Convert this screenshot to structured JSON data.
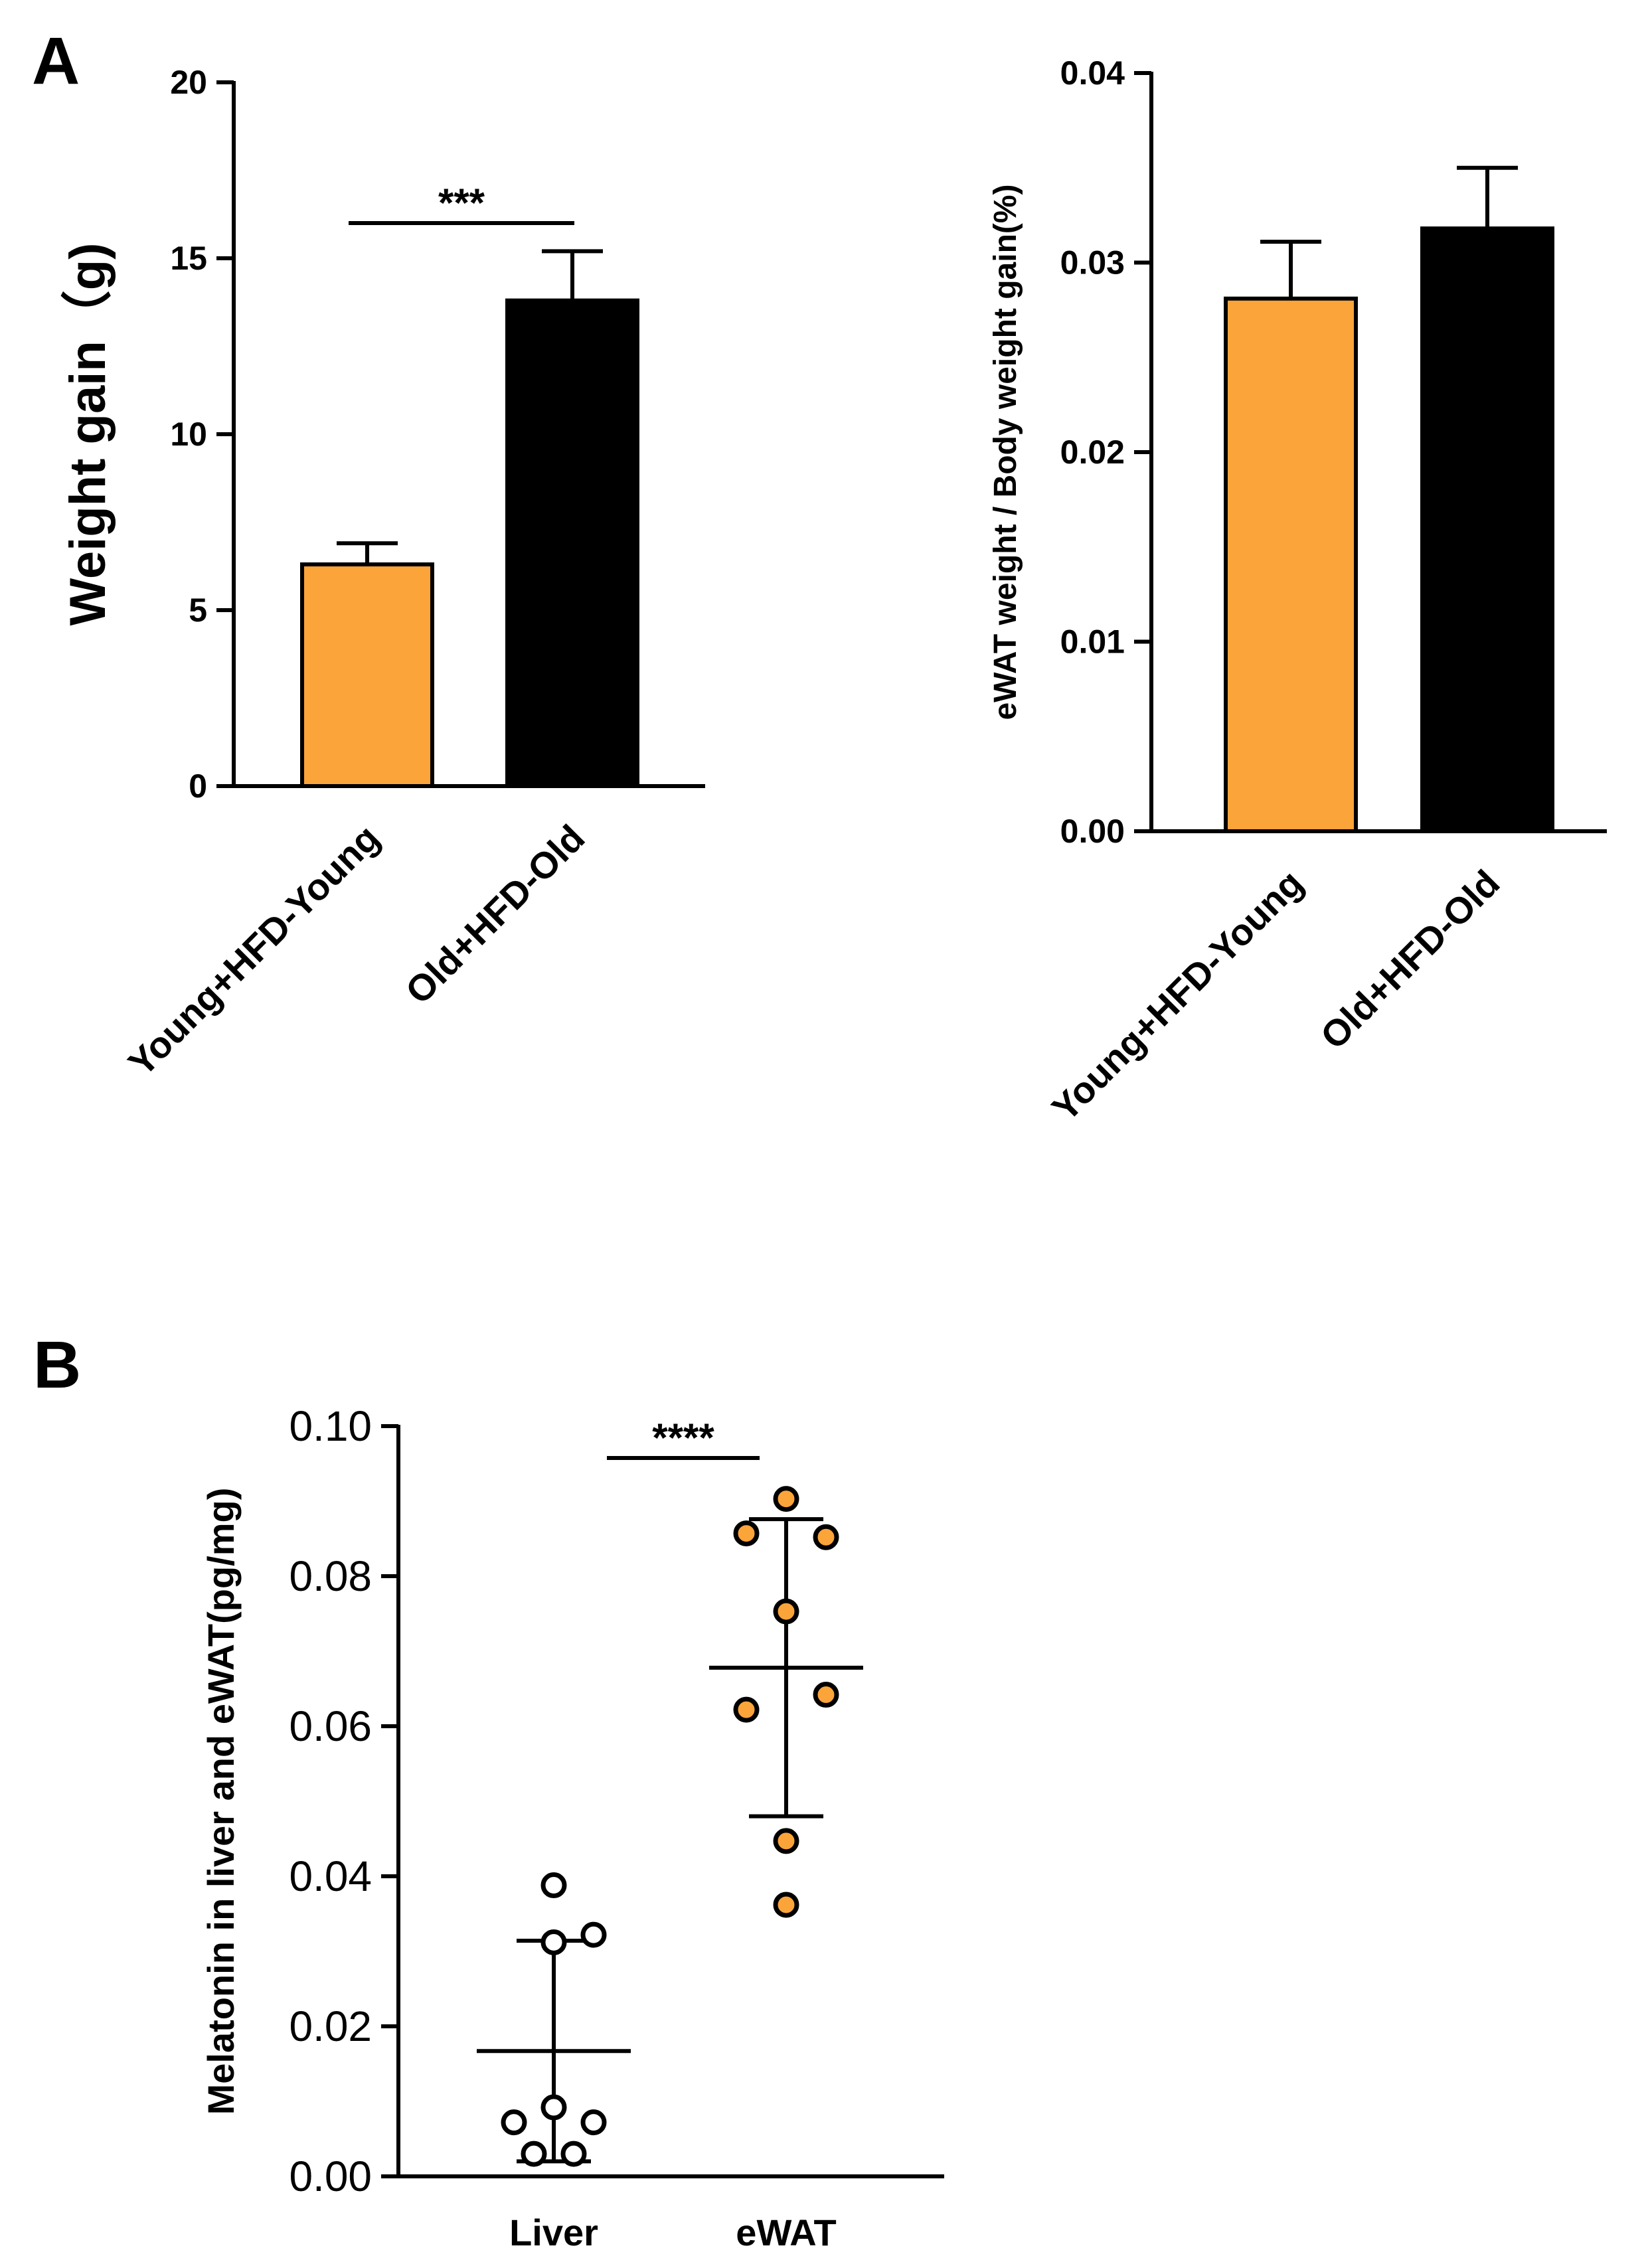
{
  "panels": {
    "a_label": "A",
    "b_label": "B"
  },
  "colors": {
    "orange": "#FBA43A",
    "black": "#000000",
    "white": "#ffffff"
  },
  "chart_data": [
    {
      "id": "A1",
      "type": "bar",
      "title": "",
      "xlabel": "",
      "ylabel": "Weight gain（g)",
      "ylim": [
        0,
        20
      ],
      "yticks": [
        0,
        5,
        10,
        15,
        20
      ],
      "ytick_labels": [
        "0",
        "5",
        "10",
        "15",
        "20"
      ],
      "categories": [
        "Young+HFD-Young",
        "Old+HFD-Old"
      ],
      "values": [
        6.3,
        13.8
      ],
      "errors": [
        0.6,
        1.4
      ],
      "bar_colors": [
        "#FBA43A",
        "#000000"
      ],
      "significance": [
        {
          "between": [
            0,
            1
          ],
          "label": "***"
        }
      ]
    },
    {
      "id": "A2",
      "type": "bar",
      "title": "",
      "xlabel": "",
      "ylabel": "eWAT weight / Body weight gain(%)",
      "ylim": [
        0,
        0.04
      ],
      "yticks": [
        0,
        0.01,
        0.02,
        0.03,
        0.04
      ],
      "ytick_labels": [
        "0.00",
        "0.01",
        "0.02",
        "0.03",
        "0.04"
      ],
      "categories": [
        "Young+HFD-Young",
        "Old+HFD-Old"
      ],
      "values": [
        0.0281,
        0.0318
      ],
      "errors": [
        0.003,
        0.0032
      ],
      "bar_colors": [
        "#FBA43A",
        "#000000"
      ]
    },
    {
      "id": "B",
      "type": "scatter",
      "title": "",
      "xlabel": "",
      "ylabel": "Melatonin in liver and eWAT(pg/mg)",
      "ylim": [
        0,
        0.1
      ],
      "yticks": [
        0,
        0.02,
        0.04,
        0.06,
        0.08,
        0.1
      ],
      "ytick_labels": [
        "0.00",
        "0.02",
        "0.04",
        "0.06",
        "0.08",
        "0.10"
      ],
      "categories": [
        "Liver",
        "eWAT"
      ],
      "series": [
        {
          "name": "Liver",
          "points": [
            {
              "offset": 0,
              "value": 0.0388
            },
            {
              "offset": 0,
              "value": 0.0312
            },
            {
              "offset": 1,
              "value": 0.0322
            },
            {
              "offset": -1,
              "value": 0.0072
            },
            {
              "offset": 0,
              "value": 0.0092
            },
            {
              "offset": 1,
              "value": 0.0072
            },
            {
              "offset": -0.5,
              "value": 0.003
            },
            {
              "offset": 0.5,
              "value": 0.003
            }
          ],
          "mean": 0.0167,
          "sd": 0.0147,
          "marker_fill": "#ffffff"
        },
        {
          "name": "eWAT",
          "points": [
            {
              "offset": 0,
              "value": 0.0903
            },
            {
              "offset": -1,
              "value": 0.0857
            },
            {
              "offset": 1,
              "value": 0.0852
            },
            {
              "offset": 0,
              "value": 0.0753
            },
            {
              "offset": -1,
              "value": 0.0622
            },
            {
              "offset": 1,
              "value": 0.0642
            },
            {
              "offset": 0,
              "value": 0.0447
            },
            {
              "offset": 0,
              "value": 0.0362
            }
          ],
          "mean": 0.0678,
          "sd": 0.0198,
          "marker_fill": "#FBA43A"
        }
      ],
      "significance": [
        {
          "between": [
            0,
            1
          ],
          "label": "****"
        }
      ]
    }
  ]
}
